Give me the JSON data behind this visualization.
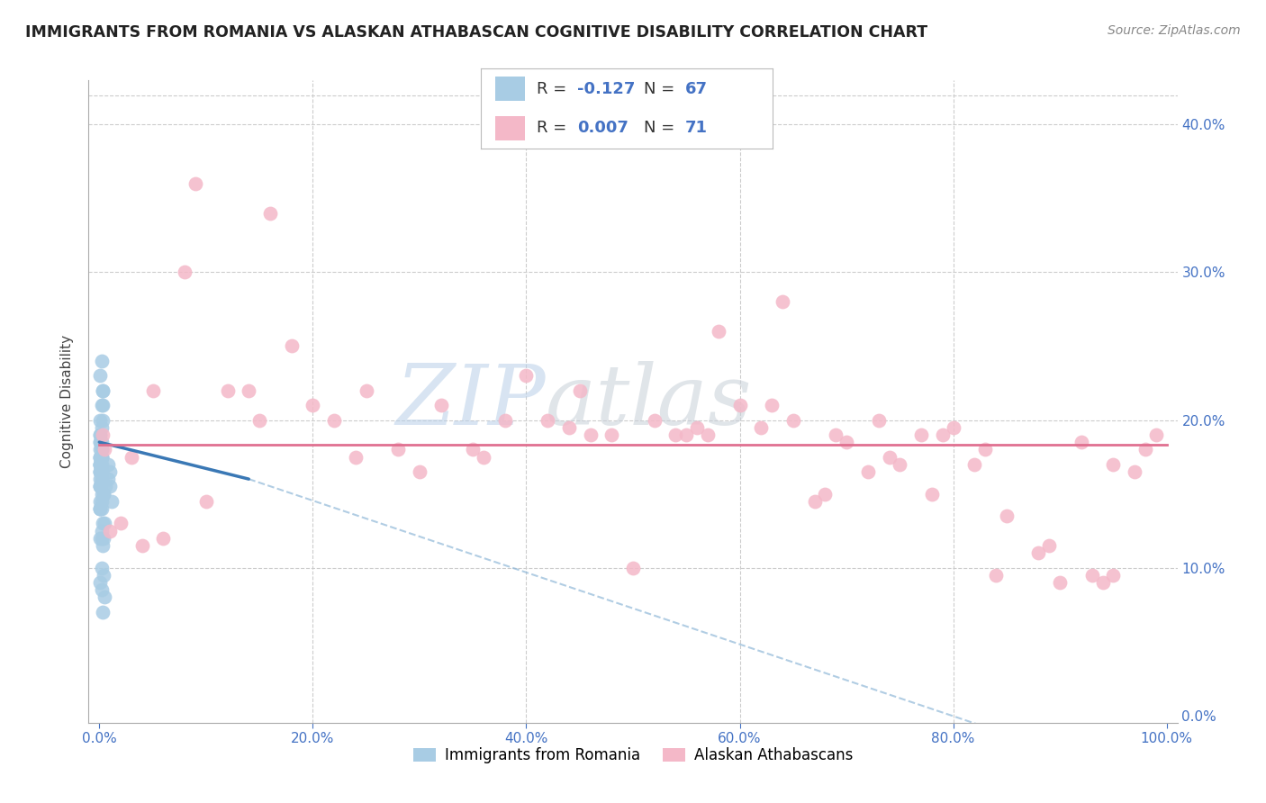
{
  "title": "IMMIGRANTS FROM ROMANIA VS ALASKAN ATHABASCAN COGNITIVE DISABILITY CORRELATION CHART",
  "source": "Source: ZipAtlas.com",
  "ylabel": "Cognitive Disability",
  "legend_label1": "Immigrants from Romania",
  "legend_label2": "Alaskan Athabascans",
  "R1": -0.127,
  "N1": 67,
  "R2": 0.007,
  "N2": 71,
  "color1": "#a8cce4",
  "color2": "#f4b8c8",
  "trendline1_solid_color": "#3a78b5",
  "trendline2_color": "#e07090",
  "trendline1_dashed_color": "#90b8d8",
  "grid_color": "#cccccc",
  "watermark_zip": "ZIP",
  "watermark_atlas": "atlas",
  "xlim": [
    0.0,
    1.0
  ],
  "ylim": [
    0.0,
    0.42
  ],
  "xticks": [
    0.0,
    0.2,
    0.4,
    0.6,
    0.8,
    1.0
  ],
  "yticks": [
    0.0,
    0.1,
    0.2,
    0.3,
    0.4
  ],
  "blue_x": [
    0.001,
    0.002,
    0.001,
    0.003,
    0.001,
    0.002,
    0.001,
    0.001,
    0.002,
    0.001,
    0.001,
    0.002,
    0.001,
    0.001,
    0.002,
    0.001,
    0.001,
    0.002,
    0.002,
    0.001,
    0.001,
    0.002,
    0.001,
    0.001,
    0.003,
    0.002,
    0.001,
    0.001,
    0.002,
    0.001,
    0.001,
    0.002,
    0.001,
    0.001,
    0.002,
    0.003,
    0.001,
    0.002,
    0.001,
    0.002,
    0.003,
    0.002,
    0.001,
    0.004,
    0.002,
    0.001,
    0.003,
    0.002,
    0.001,
    0.004,
    0.005,
    0.002,
    0.003,
    0.002,
    0.001,
    0.003,
    0.004,
    0.005,
    0.002,
    0.004,
    0.002,
    0.008,
    0.01,
    0.012,
    0.008,
    0.006,
    0.01
  ],
  "blue_y": [
    0.175,
    0.18,
    0.19,
    0.21,
    0.2,
    0.185,
    0.165,
    0.17,
    0.195,
    0.18,
    0.17,
    0.175,
    0.165,
    0.185,
    0.175,
    0.19,
    0.17,
    0.18,
    0.16,
    0.175,
    0.185,
    0.165,
    0.175,
    0.17,
    0.22,
    0.21,
    0.16,
    0.155,
    0.17,
    0.165,
    0.155,
    0.15,
    0.14,
    0.145,
    0.16,
    0.2,
    0.155,
    0.145,
    0.14,
    0.165,
    0.13,
    0.125,
    0.14,
    0.15,
    0.175,
    0.12,
    0.115,
    0.1,
    0.09,
    0.095,
    0.08,
    0.085,
    0.07,
    0.24,
    0.23,
    0.22,
    0.12,
    0.13,
    0.14,
    0.15,
    0.12,
    0.17,
    0.155,
    0.145,
    0.16,
    0.155,
    0.165
  ],
  "pink_x": [
    0.005,
    0.05,
    0.08,
    0.12,
    0.15,
    0.18,
    0.22,
    0.25,
    0.28,
    0.32,
    0.35,
    0.38,
    0.42,
    0.45,
    0.48,
    0.52,
    0.55,
    0.58,
    0.6,
    0.63,
    0.65,
    0.68,
    0.7,
    0.73,
    0.75,
    0.78,
    0.8,
    0.82,
    0.85,
    0.88,
    0.9,
    0.92,
    0.95,
    0.97,
    0.99,
    0.003,
    0.01,
    0.02,
    0.04,
    0.06,
    0.1,
    0.14,
    0.2,
    0.3,
    0.4,
    0.5,
    0.56,
    0.62,
    0.67,
    0.72,
    0.77,
    0.83,
    0.89,
    0.94,
    0.98,
    0.03,
    0.09,
    0.16,
    0.24,
    0.36,
    0.44,
    0.54,
    0.64,
    0.74,
    0.84,
    0.93,
    0.95,
    0.46,
    0.57,
    0.69,
    0.79
  ],
  "pink_y": [
    0.18,
    0.22,
    0.3,
    0.22,
    0.2,
    0.25,
    0.2,
    0.22,
    0.18,
    0.21,
    0.18,
    0.2,
    0.2,
    0.22,
    0.19,
    0.2,
    0.19,
    0.26,
    0.21,
    0.21,
    0.2,
    0.15,
    0.185,
    0.2,
    0.17,
    0.15,
    0.195,
    0.17,
    0.135,
    0.11,
    0.09,
    0.185,
    0.17,
    0.165,
    0.19,
    0.19,
    0.125,
    0.13,
    0.115,
    0.12,
    0.145,
    0.22,
    0.21,
    0.165,
    0.23,
    0.1,
    0.195,
    0.195,
    0.145,
    0.165,
    0.19,
    0.18,
    0.115,
    0.09,
    0.18,
    0.175,
    0.36,
    0.34,
    0.175,
    0.175,
    0.195,
    0.19,
    0.28,
    0.175,
    0.095,
    0.095,
    0.095,
    0.19,
    0.19,
    0.19,
    0.19
  ],
  "blue_trend_start_x": 0.0,
  "blue_trend_end_solid_x": 0.14,
  "blue_trend_end_dash_x": 0.88,
  "blue_trend_start_y": 0.185,
  "blue_trend_end_solid_y": 0.16,
  "blue_trend_end_dash_y": -0.02,
  "pink_trend_start_x": 0.0,
  "pink_trend_end_x": 1.0,
  "pink_trend_y": 0.183
}
